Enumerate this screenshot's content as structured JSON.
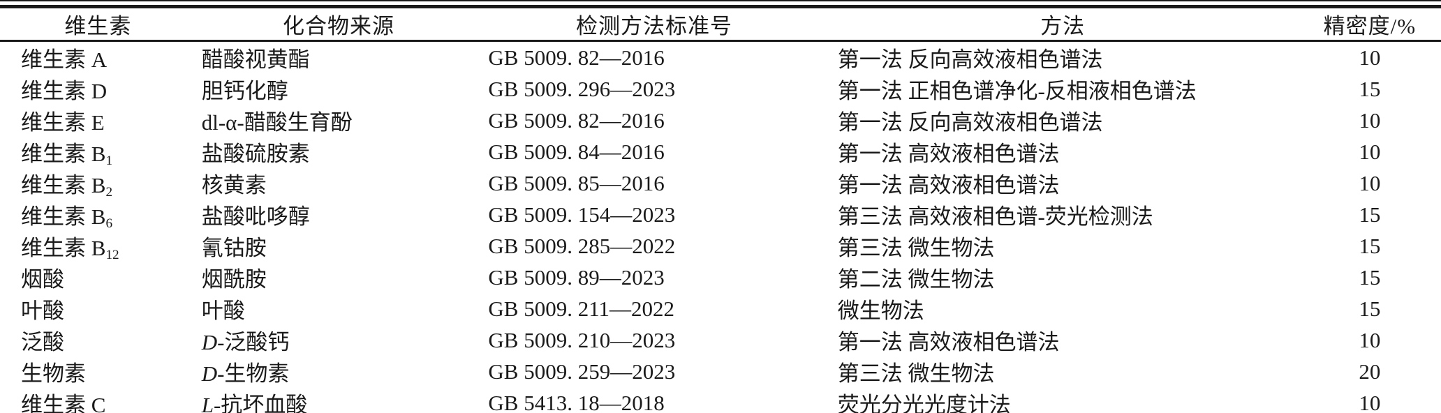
{
  "table": {
    "columns": [
      "维生素",
      "化合物来源",
      "检测方法标准号",
      "方法",
      "精密度/%"
    ],
    "rows": [
      {
        "vitamin": "维生素 A",
        "vitamin_sub": "",
        "source_prefix": "",
        "source": "醋酸视黄酯",
        "standard": "GB 5009. 82—2016",
        "method": "第一法 反向高效液相色谱法",
        "precision": "10"
      },
      {
        "vitamin": "维生素 D",
        "vitamin_sub": "",
        "source_prefix": "",
        "source": "胆钙化醇",
        "standard": "GB 5009. 296—2023",
        "method": "第一法 正相色谱净化-反相液相色谱法",
        "precision": "15"
      },
      {
        "vitamin": "维生素 E",
        "vitamin_sub": "",
        "source_prefix": "",
        "source": "dl-α-醋酸生育酚",
        "standard": "GB 5009. 82—2016",
        "method": "第一法 反向高效液相色谱法",
        "precision": "10"
      },
      {
        "vitamin": "维生素 B",
        "vitamin_sub": "1",
        "source_prefix": "",
        "source": "盐酸硫胺素",
        "standard": "GB 5009. 84—2016",
        "method": "第一法 高效液相色谱法",
        "precision": "10"
      },
      {
        "vitamin": "维生素 B",
        "vitamin_sub": "2",
        "source_prefix": "",
        "source": "核黄素",
        "standard": "GB 5009. 85—2016",
        "method": "第一法 高效液相色谱法",
        "precision": "10"
      },
      {
        "vitamin": "维生素 B",
        "vitamin_sub": "6",
        "source_prefix": "",
        "source": "盐酸吡哆醇",
        "standard": "GB 5009. 154—2023",
        "method": "第三法 高效液相色谱-荧光检测法",
        "precision": "15"
      },
      {
        "vitamin": "维生素 B",
        "vitamin_sub": "12",
        "source_prefix": "",
        "source": "氰钴胺",
        "standard": "GB 5009. 285—2022",
        "method": "第三法 微生物法",
        "precision": "15"
      },
      {
        "vitamin": "烟酸",
        "vitamin_sub": "",
        "source_prefix": "",
        "source": "烟酰胺",
        "standard": "GB 5009. 89—2023",
        "method": "第二法 微生物法",
        "precision": "15"
      },
      {
        "vitamin": "叶酸",
        "vitamin_sub": "",
        "source_prefix": "",
        "source": "叶酸",
        "standard": "GB 5009. 211—2022",
        "method": "微生物法",
        "precision": "15"
      },
      {
        "vitamin": "泛酸",
        "vitamin_sub": "",
        "source_prefix": "D",
        "source": "-泛酸钙",
        "standard": "GB 5009. 210—2023",
        "method": "第一法 高效液相色谱法",
        "precision": "10"
      },
      {
        "vitamin": "生物素",
        "vitamin_sub": "",
        "source_prefix": "D",
        "source": "-生物素",
        "standard": "GB 5009. 259—2023",
        "method": "第三法 微生物法",
        "precision": "20"
      },
      {
        "vitamin": "维生素 C",
        "vitamin_sub": "",
        "source_prefix": "L",
        "source": "-抗坏血酸",
        "standard": "GB 5413. 18—2018",
        "method": "荧光分光光度计法",
        "precision": "10"
      }
    ]
  }
}
